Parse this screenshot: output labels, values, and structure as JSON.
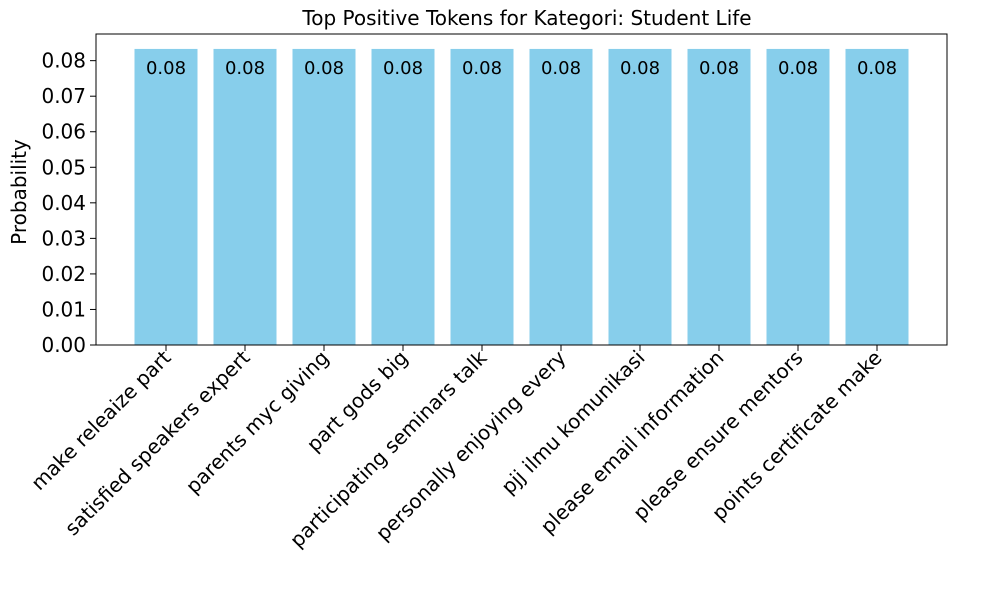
{
  "chart_data": {
    "type": "bar",
    "title": "Top Positive Tokens for Kategori: Student Life",
    "xlabel": "",
    "ylabel": "Probability",
    "categories": [
      "make releaize part",
      "satisfied speakers expert",
      "parents myc giving",
      "part gods big",
      "participating seminars talk",
      "personally enjoying every",
      "pjj ilmu komunikasi",
      "please email information",
      "please ensure mentors",
      "points certificate make"
    ],
    "values": [
      0.0833,
      0.0833,
      0.0833,
      0.0833,
      0.0833,
      0.0833,
      0.0833,
      0.0833,
      0.0833,
      0.0833
    ],
    "data_labels": [
      "0.08",
      "0.08",
      "0.08",
      "0.08",
      "0.08",
      "0.08",
      "0.08",
      "0.08",
      "0.08",
      "0.08"
    ],
    "ylim": [
      0,
      0.0875
    ],
    "yticks": [
      0.0,
      0.01,
      0.02,
      0.03,
      0.04,
      0.05,
      0.06,
      0.07,
      0.08
    ],
    "ytick_labels": [
      "0.00",
      "0.01",
      "0.02",
      "0.03",
      "0.04",
      "0.05",
      "0.06",
      "0.07",
      "0.08"
    ],
    "bar_color": "#87ceeb",
    "grid": false,
    "legend": "none"
  }
}
